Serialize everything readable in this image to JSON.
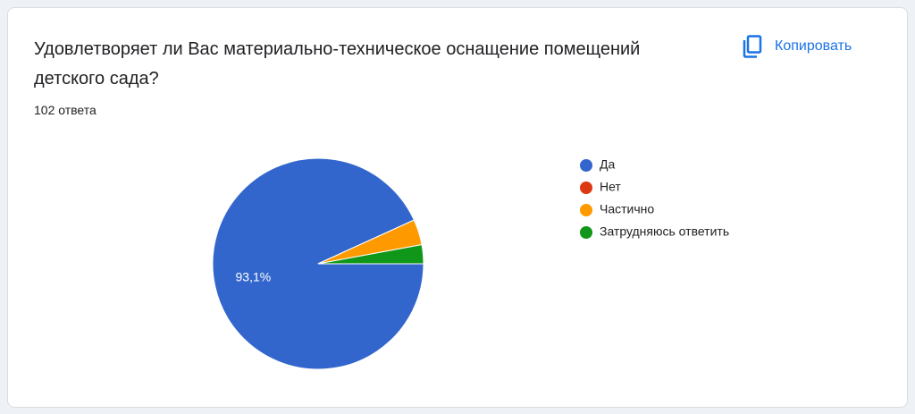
{
  "copy_button": "Копировать",
  "chart_data": {
    "type": "pie",
    "title": "Удовлетворяет ли Вас материально-техническое оснащение помещений детского сада?",
    "subtitle": "102 ответа",
    "categories": [
      "Да",
      "Нет",
      "Частично",
      "Затрудняюсь ответить"
    ],
    "values": [
      93.1,
      0,
      3.9,
      2.9
    ],
    "value_labels": [
      "93,1%",
      null,
      null,
      null
    ],
    "colors": [
      "#3366cc",
      "#dc3912",
      "#ff9900",
      "#109618"
    ],
    "legend": "right"
  }
}
